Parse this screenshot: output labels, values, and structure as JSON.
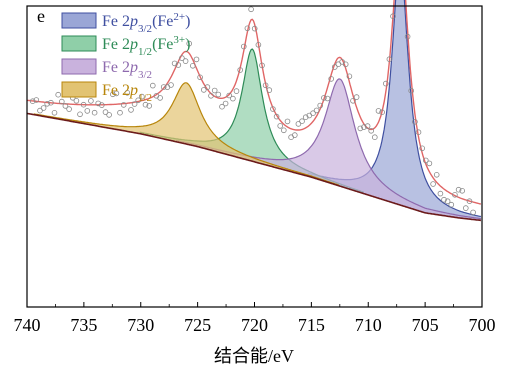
{
  "chart_data": {
    "type": "line",
    "panel_label": "e",
    "xlabel": "结合能/eV",
    "ylabel": "",
    "xlim": [
      740,
      700
    ],
    "x_reversed": true,
    "y_ticks_shown": false,
    "x_ticks": [
      740,
      735,
      730,
      725,
      720,
      715,
      710,
      705,
      700
    ],
    "x_tick_labels": [
      "740",
      "735",
      "730",
      "725",
      "720",
      "715",
      "710",
      "705",
      "700"
    ],
    "legend_position": "top-left",
    "grid": false,
    "legend": [
      {
        "base": "Fe 2",
        "orb": "p",
        "sub": "3/2",
        "paren_open": "(Fe",
        "sup": "2+",
        "paren_close": ")",
        "color": "#3F4FA0",
        "fill": "#9AA6D6"
      },
      {
        "base": "Fe 2",
        "orb": "p",
        "sub": "1/2",
        "paren_open": "(Fe",
        "sup": "3+",
        "paren_close": ")",
        "color": "#2E8B57",
        "fill": "#8FCFA8"
      },
      {
        "base": "Fe 2",
        "orb": "p",
        "sub": "3/2",
        "paren_open": "",
        "sup": "",
        "paren_close": "",
        "color": "#8E6AAE",
        "fill": "#C9B2DD"
      },
      {
        "base": "Fe 2",
        "orb": "p",
        "sub": "1/2",
        "paren_open": "",
        "sup": "",
        "paren_close": "",
        "color": "#B8860B",
        "fill": "#E2C372"
      }
    ],
    "colors": {
      "envelope": "#E06666",
      "background": "#6B1A1A",
      "data_points": "#888888",
      "axis": "#000000"
    },
    "background_line": {
      "x": [
        740,
        735,
        730,
        725,
        720,
        715,
        710,
        705,
        702,
        700
      ],
      "y": [
        0.72,
        0.68,
        0.64,
        0.59,
        0.53,
        0.47,
        0.4,
        0.33,
        0.31,
        0.3
      ]
    },
    "peaks": [
      {
        "series": "Fe 2p3/2 (Fe2+)",
        "center": 707.2,
        "height": 0.95,
        "width": 0.9
      },
      {
        "series": "Fe 2p1/2 (Fe3+)",
        "center": 720.2,
        "height": 0.44,
        "width": 1.1
      },
      {
        "series": "Fe 2p3/2",
        "center": 712.5,
        "height": 0.42,
        "width": 1.6
      },
      {
        "series": "Fe 2p1/2",
        "center": 726.0,
        "height": 0.24,
        "width": 1.5
      }
    ],
    "fit_envelope_offset": 0.06
  }
}
